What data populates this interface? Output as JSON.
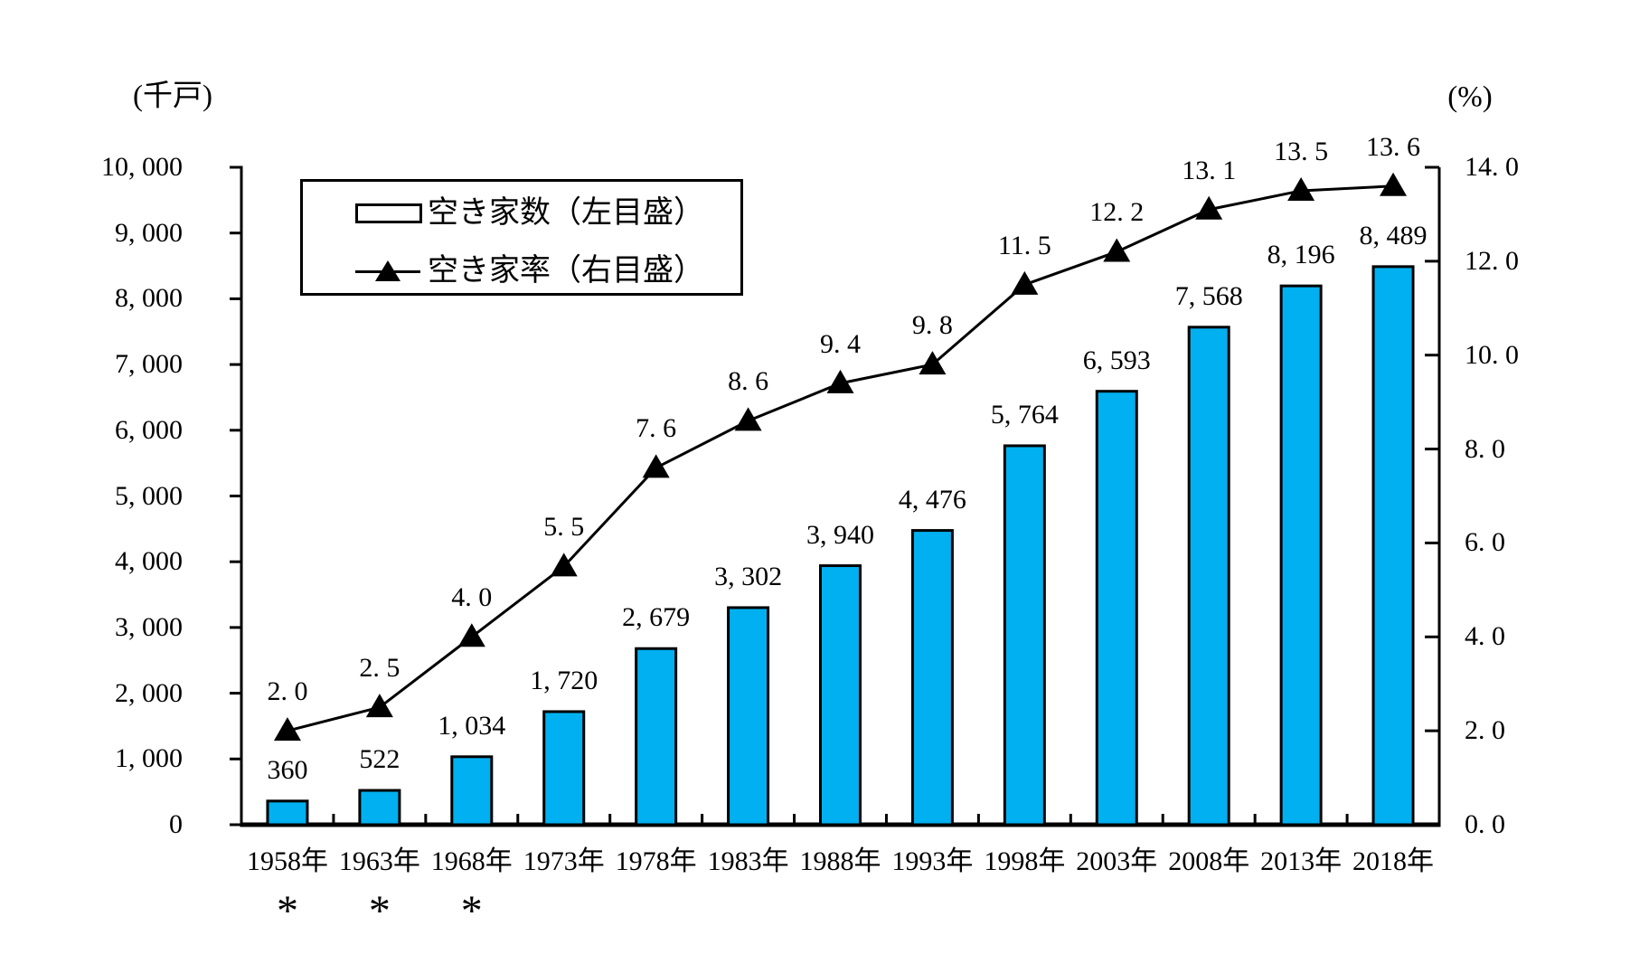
{
  "page": {
    "background": "#ffffff"
  },
  "units": {
    "left_axis_unit": "(千戸)",
    "right_axis_unit": "(%)"
  },
  "legend": {
    "items": [
      {
        "marker": "bar-swatch",
        "label": "空き家数（左目盛）"
      },
      {
        "marker": "triangle-line",
        "label": "空き家率（右目盛）"
      }
    ]
  },
  "colors": {
    "bar_fill": "#00B0F0",
    "bar_outline": "#000000",
    "line_color": "#000000",
    "marker_color": "#000000",
    "text_color": "#000000"
  },
  "chart_data": {
    "type": "bar",
    "combo": "bar+line",
    "grid": false,
    "legend_position": "top-left-inside",
    "categories": [
      "1958年",
      "1963年",
      "1968年",
      "1973年",
      "1978年",
      "1983年",
      "1988年",
      "1993年",
      "1998年",
      "2003年",
      "2008年",
      "2013年",
      "2018年"
    ],
    "category_footnotes": [
      "*",
      "*",
      "*",
      "",
      "",
      "",
      "",
      "",
      "",
      "",
      "",
      "",
      ""
    ],
    "series": [
      {
        "name": "空き家数（左目盛）",
        "type": "bar",
        "axis": "left",
        "values": [
          360,
          522,
          1034,
          1720,
          2679,
          3302,
          3940,
          4476,
          5764,
          6593,
          7568,
          8196,
          8489
        ],
        "value_labels": [
          "360",
          "522",
          "1, 034",
          "1, 720",
          "2, 679",
          "3, 302",
          "3, 940",
          "4, 476",
          "5, 764",
          "6, 593",
          "7, 568",
          "8, 196",
          "8, 489"
        ]
      },
      {
        "name": "空き家率（右目盛）",
        "type": "line",
        "axis": "right",
        "values": [
          2.0,
          2.5,
          4.0,
          5.5,
          7.6,
          8.6,
          9.4,
          9.8,
          11.5,
          12.2,
          13.1,
          13.5,
          13.6
        ],
        "value_labels": [
          "2. 0",
          "2. 5",
          "4. 0",
          "5. 5",
          "7. 6",
          "8. 6",
          "9. 4",
          "9. 8",
          "11. 5",
          "12. 2",
          "13. 1",
          "13. 5",
          "13. 6"
        ]
      }
    ],
    "left_axis": {
      "title": "(千戸)",
      "min": 0,
      "max": 10000,
      "step": 1000,
      "tick_labels": [
        "0",
        "1, 000",
        "2, 000",
        "3, 000",
        "4, 000",
        "5, 000",
        "6, 000",
        "7, 000",
        "8, 000",
        "9, 000",
        "10, 000"
      ]
    },
    "right_axis": {
      "title": "(%)",
      "min": 0,
      "max": 14,
      "step": 2,
      "tick_labels": [
        "0. 0",
        "2. 0",
        "4. 0",
        "6. 0",
        "8. 0",
        "10. 0",
        "12. 0",
        "14. 0"
      ]
    }
  }
}
